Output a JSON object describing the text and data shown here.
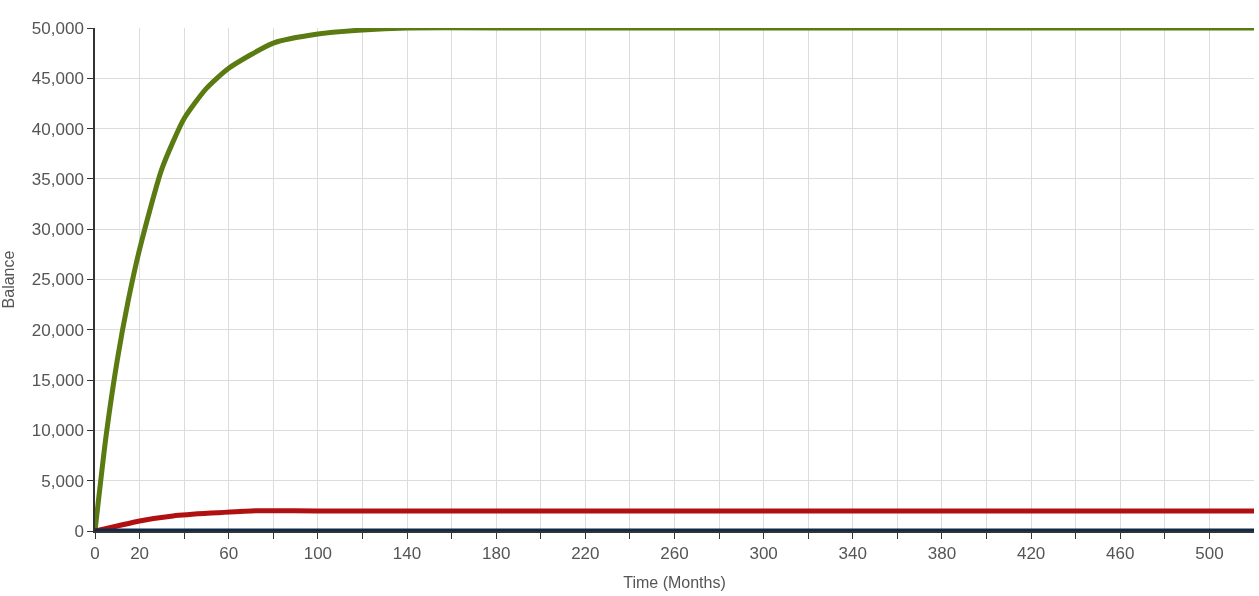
{
  "chart_data": {
    "type": "line",
    "xlabel": "Time (Months)",
    "ylabel": "Balance",
    "xlim": [
      0,
      520
    ],
    "ylim": [
      0,
      50000
    ],
    "xticks": [
      0,
      20,
      {
        "value": 40,
        "label": null
      },
      60,
      {
        "value": 80,
        "label": null
      },
      100,
      {
        "value": 120,
        "label": null
      },
      140,
      {
        "value": 160,
        "label": null
      },
      180,
      {
        "value": 200,
        "label": null
      },
      220,
      {
        "value": 240,
        "label": null
      },
      260,
      {
        "value": 280,
        "label": null
      },
      300,
      {
        "value": 320,
        "label": null
      },
      340,
      {
        "value": 360,
        "label": null
      },
      380,
      {
        "value": 400,
        "label": null
      },
      420,
      {
        "value": 440,
        "label": null
      },
      460,
      {
        "value": 480,
        "label": null
      },
      500
    ],
    "yticks": [
      {
        "value": 0,
        "label": "0"
      },
      {
        "value": 5000,
        "label": "5,000"
      },
      {
        "value": 10000,
        "label": "10,000"
      },
      {
        "value": 15000,
        "label": "15,000"
      },
      {
        "value": 20000,
        "label": "20,000"
      },
      {
        "value": 25000,
        "label": "25,000"
      },
      {
        "value": 30000,
        "label": "30,000"
      },
      {
        "value": 35000,
        "label": "35,000"
      },
      {
        "value": 40000,
        "label": "40,000"
      },
      {
        "value": 45000,
        "label": "45,000"
      },
      {
        "value": 50000,
        "label": "50,000"
      }
    ],
    "grid": true,
    "marker": "none",
    "line_style": "solid",
    "x": [
      0,
      5,
      10,
      15,
      20,
      30,
      40,
      50,
      60,
      80,
      100,
      120,
      140,
      200,
      300,
      400,
      520
    ],
    "series": [
      {
        "color": "#5a7a12",
        "values": [
          0,
          9500,
          17000,
          23000,
          28000,
          36000,
          41000,
          44000,
          46000,
          48500,
          49400,
          49800,
          50000,
          50000,
          50000,
          50000,
          50000
        ]
      },
      {
        "color": "#b01010",
        "x": [
          0,
          10,
          20,
          35,
          70,
          100,
          520
        ],
        "values": [
          0,
          500,
          1000,
          1500,
          2000,
          2000,
          2000
        ]
      },
      {
        "color": "#0e2a4a",
        "values": [
          0,
          0,
          0,
          0,
          0,
          0,
          0,
          0,
          0,
          0,
          0,
          0,
          0,
          0,
          0,
          0,
          0
        ]
      }
    ]
  }
}
